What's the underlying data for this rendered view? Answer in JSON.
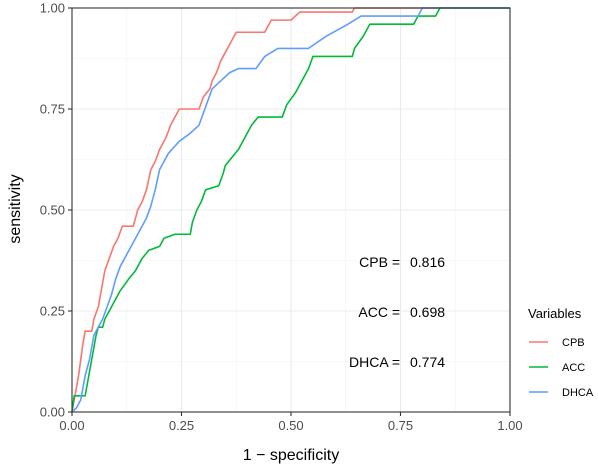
{
  "chart_data": {
    "type": "line",
    "xlabel": "1 − specificity",
    "ylabel": "sensitivity",
    "xlim": [
      0,
      1
    ],
    "ylim": [
      0,
      1
    ],
    "x_ticks": [
      "0.00",
      "0.25",
      "0.50",
      "0.75",
      "1.00"
    ],
    "y_ticks": [
      "0.00",
      "0.25",
      "0.50",
      "0.75",
      "1.00"
    ],
    "grid": true,
    "legend": {
      "title": "Variables",
      "position": "right"
    },
    "annotations": [
      {
        "name": "CPB = ",
        "value": "0.816"
      },
      {
        "name": "ACC = ",
        "value": "0.698"
      },
      {
        "name": "DHCA = ",
        "value": "0.774"
      }
    ],
    "series": [
      {
        "name": "CPB",
        "color": "#F8766D",
        "points": [
          [
            0,
            0
          ],
          [
            0.005,
            0.03
          ],
          [
            0.01,
            0.06
          ],
          [
            0.015,
            0.09
          ],
          [
            0.02,
            0.13
          ],
          [
            0.025,
            0.17
          ],
          [
            0.03,
            0.2
          ],
          [
            0.045,
            0.2
          ],
          [
            0.05,
            0.23
          ],
          [
            0.06,
            0.26
          ],
          [
            0.065,
            0.29
          ],
          [
            0.07,
            0.32
          ],
          [
            0.075,
            0.35
          ],
          [
            0.085,
            0.38
          ],
          [
            0.095,
            0.41
          ],
          [
            0.105,
            0.43
          ],
          [
            0.115,
            0.46
          ],
          [
            0.14,
            0.46
          ],
          [
            0.15,
            0.5
          ],
          [
            0.16,
            0.52
          ],
          [
            0.17,
            0.55
          ],
          [
            0.18,
            0.6
          ],
          [
            0.19,
            0.62
          ],
          [
            0.2,
            0.65
          ],
          [
            0.215,
            0.68
          ],
          [
            0.225,
            0.71
          ],
          [
            0.235,
            0.73
          ],
          [
            0.245,
            0.75
          ],
          [
            0.29,
            0.75
          ],
          [
            0.3,
            0.78
          ],
          [
            0.315,
            0.8
          ],
          [
            0.32,
            0.82
          ],
          [
            0.33,
            0.84
          ],
          [
            0.34,
            0.87
          ],
          [
            0.35,
            0.89
          ],
          [
            0.365,
            0.92
          ],
          [
            0.375,
            0.94
          ],
          [
            0.44,
            0.94
          ],
          [
            0.455,
            0.97
          ],
          [
            0.5,
            0.97
          ],
          [
            0.52,
            0.99
          ],
          [
            0.64,
            0.99
          ],
          [
            0.645,
            1.0
          ],
          [
            1.0,
            1.0
          ]
        ]
      },
      {
        "name": "ACC",
        "color": "#00BA38",
        "points": [
          [
            0,
            0
          ],
          [
            0.005,
            0.04
          ],
          [
            0.03,
            0.04
          ],
          [
            0.035,
            0.07
          ],
          [
            0.04,
            0.1
          ],
          [
            0.045,
            0.13
          ],
          [
            0.05,
            0.16
          ],
          [
            0.055,
            0.19
          ],
          [
            0.06,
            0.21
          ],
          [
            0.07,
            0.21
          ],
          [
            0.075,
            0.23
          ],
          [
            0.09,
            0.26
          ],
          [
            0.1,
            0.28
          ],
          [
            0.11,
            0.3
          ],
          [
            0.13,
            0.33
          ],
          [
            0.145,
            0.35
          ],
          [
            0.16,
            0.38
          ],
          [
            0.175,
            0.4
          ],
          [
            0.2,
            0.41
          ],
          [
            0.21,
            0.43
          ],
          [
            0.235,
            0.44
          ],
          [
            0.27,
            0.44
          ],
          [
            0.275,
            0.47
          ],
          [
            0.285,
            0.5
          ],
          [
            0.295,
            0.52
          ],
          [
            0.305,
            0.55
          ],
          [
            0.335,
            0.56
          ],
          [
            0.345,
            0.59
          ],
          [
            0.35,
            0.61
          ],
          [
            0.365,
            0.63
          ],
          [
            0.38,
            0.65
          ],
          [
            0.39,
            0.67
          ],
          [
            0.4,
            0.69
          ],
          [
            0.41,
            0.71
          ],
          [
            0.425,
            0.73
          ],
          [
            0.48,
            0.73
          ],
          [
            0.49,
            0.76
          ],
          [
            0.51,
            0.79
          ],
          [
            0.525,
            0.82
          ],
          [
            0.54,
            0.85
          ],
          [
            0.55,
            0.88
          ],
          [
            0.64,
            0.88
          ],
          [
            0.645,
            0.9
          ],
          [
            0.665,
            0.93
          ],
          [
            0.68,
            0.96
          ],
          [
            0.78,
            0.96
          ],
          [
            0.79,
            0.98
          ],
          [
            0.83,
            0.98
          ],
          [
            0.84,
            1.0
          ],
          [
            1.0,
            1.0
          ]
        ]
      },
      {
        "name": "DHCA",
        "color": "#619CFF",
        "points": [
          [
            0,
            0
          ],
          [
            0.01,
            0.01
          ],
          [
            0.02,
            0.03
          ],
          [
            0.025,
            0.06
          ],
          [
            0.03,
            0.09
          ],
          [
            0.04,
            0.13
          ],
          [
            0.045,
            0.16
          ],
          [
            0.05,
            0.19
          ],
          [
            0.06,
            0.21
          ],
          [
            0.07,
            0.23
          ],
          [
            0.08,
            0.26
          ],
          [
            0.09,
            0.29
          ],
          [
            0.1,
            0.33
          ],
          [
            0.11,
            0.36
          ],
          [
            0.12,
            0.38
          ],
          [
            0.13,
            0.4
          ],
          [
            0.14,
            0.42
          ],
          [
            0.15,
            0.44
          ],
          [
            0.16,
            0.46
          ],
          [
            0.17,
            0.48
          ],
          [
            0.18,
            0.51
          ],
          [
            0.19,
            0.55
          ],
          [
            0.2,
            0.6
          ],
          [
            0.22,
            0.64
          ],
          [
            0.245,
            0.67
          ],
          [
            0.27,
            0.69
          ],
          [
            0.29,
            0.71
          ],
          [
            0.3,
            0.74
          ],
          [
            0.31,
            0.77
          ],
          [
            0.32,
            0.8
          ],
          [
            0.34,
            0.82
          ],
          [
            0.36,
            0.84
          ],
          [
            0.38,
            0.85
          ],
          [
            0.42,
            0.85
          ],
          [
            0.44,
            0.88
          ],
          [
            0.47,
            0.9
          ],
          [
            0.54,
            0.9
          ],
          [
            0.58,
            0.93
          ],
          [
            0.63,
            0.96
          ],
          [
            0.66,
            0.98
          ],
          [
            0.79,
            0.98
          ],
          [
            0.8,
            1.0
          ],
          [
            1.0,
            1.0
          ]
        ]
      }
    ]
  }
}
